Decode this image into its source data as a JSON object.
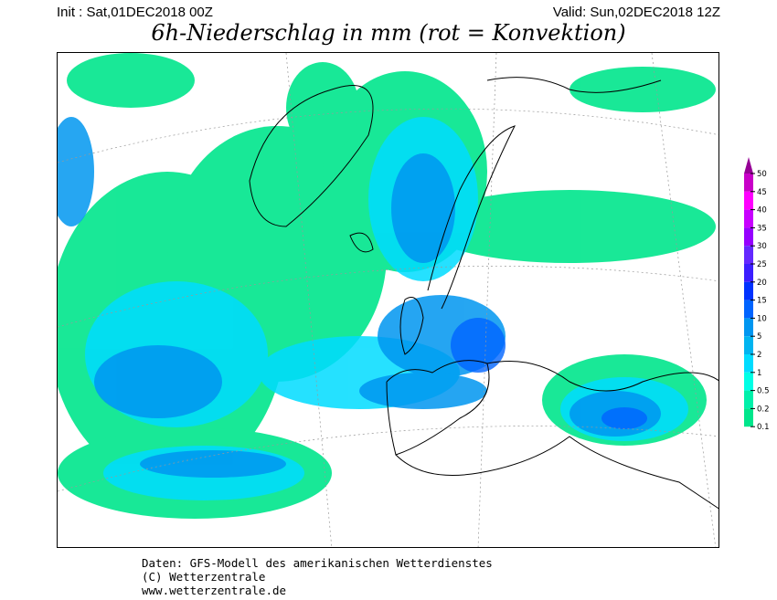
{
  "header": {
    "init": "Init : Sat,01DEC2018 00Z",
    "valid": "Valid: Sun,02DEC2018 12Z",
    "title": "6h-Niederschlag in mm (rot = Konvektion)"
  },
  "legend": {
    "labels": [
      "50",
      "45",
      "40",
      "35",
      "30",
      "25",
      "20",
      "15",
      "10",
      "5",
      "2",
      "1",
      "0.5",
      "0.2",
      "0.1"
    ],
    "colors": [
      "#960096",
      "#c800c8",
      "#ff00ff",
      "#c800ff",
      "#9600ff",
      "#6428ff",
      "#3c1eff",
      "#0032ff",
      "#0064ff",
      "#0096f0",
      "#00b4f0",
      "#00dcff",
      "#00ffe6",
      "#00f0aa",
      "#00e68c"
    ]
  },
  "footer": {
    "line1": "Daten: GFS-Modell des amerikanischen Wetterdienstes",
    "line2": "(C) Wetterzentrale",
    "line3": "www.wetterzentrale.de"
  }
}
